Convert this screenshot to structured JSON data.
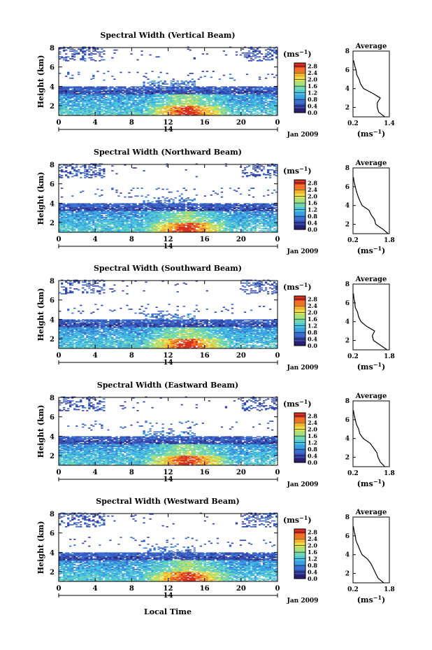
{
  "figure": {
    "xlabel": "Local Time",
    "date_label": "Jan 2009",
    "day_label": "14",
    "unit_label": "(ms",
    "unit_exp": "−1",
    "average_title": "Average",
    "ylabel": "Height (km)"
  },
  "chart_data": [
    {
      "type": "heatmap",
      "title": "Spectral Width (Vertical Beam)",
      "ylabel": "Height (km)",
      "x_ticks": [
        "0",
        "4",
        "8",
        "12",
        "16",
        "20",
        "0"
      ],
      "y_ticks": [
        "2",
        "4",
        "6",
        "8"
      ],
      "xlim": [
        0,
        24
      ],
      "ylim": [
        1,
        8
      ],
      "colorbar": {
        "label": "(ms⁻¹)",
        "ticks": [
          "0.0",
          "0.4",
          "0.8",
          "1.2",
          "1.6",
          "2.0",
          "2.4",
          "2.8"
        ],
        "range": [
          0,
          3.0
        ]
      },
      "average_profile": {
        "title": "Average",
        "xlabel": "(ms⁻¹)",
        "x_ticks": [
          "0.2",
          "1.4"
        ],
        "xlim": [
          0.2,
          1.4
        ],
        "ylim": [
          1,
          8
        ],
        "y_ticks": [
          "2",
          "4",
          "6",
          "8"
        ],
        "height": [
          1.0,
          1.5,
          2.0,
          2.5,
          3.0,
          3.5,
          4.0,
          4.5,
          5.0,
          5.5,
          6.0,
          6.5,
          7.0
        ],
        "width": [
          1.25,
          1.05,
          1.0,
          1.0,
          1.1,
          0.85,
          0.55,
          0.45,
          0.4,
          0.32,
          0.3,
          0.25,
          0.22
        ]
      }
    },
    {
      "type": "heatmap",
      "title": "Spectral Width (Northward Beam)",
      "ylabel": "Height (km)",
      "x_ticks": [
        "0",
        "4",
        "8",
        "12",
        "16",
        "20",
        "0"
      ],
      "y_ticks": [
        "2",
        "4",
        "6",
        "8"
      ],
      "xlim": [
        0,
        24
      ],
      "ylim": [
        1,
        8
      ],
      "colorbar": {
        "label": "(ms⁻¹)",
        "ticks": [
          "0.0",
          "0.4",
          "0.8",
          "1.2",
          "1.6",
          "2.0",
          "2.4",
          "2.8"
        ],
        "range": [
          0,
          3.0
        ]
      },
      "average_profile": {
        "title": "Average",
        "xlabel": "(ms⁻¹)",
        "x_ticks": [
          "0.2",
          "1.8"
        ],
        "xlim": [
          0.2,
          1.8
        ],
        "ylim": [
          1,
          8
        ],
        "y_ticks": [
          "2",
          "4",
          "6",
          "8"
        ],
        "height": [
          1.0,
          1.5,
          2.0,
          2.5,
          3.0,
          3.5,
          4.0,
          4.5,
          5.0,
          5.5,
          6.0,
          6.5,
          7.0
        ],
        "width": [
          1.75,
          1.5,
          1.2,
          1.15,
          1.0,
          0.9,
          0.6,
          0.5,
          0.42,
          0.35,
          0.3,
          0.25,
          0.22
        ]
      }
    },
    {
      "type": "heatmap",
      "title": "Spectral Width (Southward Beam)",
      "ylabel": "Height (km)",
      "x_ticks": [
        "0",
        "4",
        "8",
        "12",
        "16",
        "20",
        "0"
      ],
      "y_ticks": [
        "2",
        "4",
        "6",
        "8"
      ],
      "xlim": [
        0,
        24
      ],
      "ylim": [
        1,
        8
      ],
      "colorbar": {
        "label": "(ms⁻¹)",
        "ticks": [
          "0.0",
          "0.4",
          "0.8",
          "1.2",
          "1.6",
          "2.0",
          "2.4",
          "2.8"
        ],
        "range": [
          0,
          3.0
        ]
      },
      "average_profile": {
        "title": "Average",
        "xlabel": "(ms⁻¹)",
        "x_ticks": [
          "0.2",
          "1.8"
        ],
        "xlim": [
          0.2,
          1.8
        ],
        "ylim": [
          1,
          8
        ],
        "y_ticks": [
          "2",
          "4",
          "6",
          "8"
        ],
        "height": [
          1.0,
          1.5,
          2.0,
          2.5,
          3.0,
          3.5,
          4.0,
          4.5,
          5.0,
          5.5,
          6.0,
          6.5,
          7.0
        ],
        "width": [
          1.7,
          1.4,
          1.1,
          1.05,
          1.15,
          0.8,
          0.55,
          0.45,
          0.4,
          0.3,
          0.28,
          0.24,
          0.22
        ]
      }
    },
    {
      "type": "heatmap",
      "title": "Spectral Width (Eastward Beam)",
      "ylabel": "Height (km)",
      "x_ticks": [
        "0",
        "4",
        "8",
        "12",
        "16",
        "20",
        "0"
      ],
      "y_ticks": [
        "2",
        "4",
        "6",
        "8"
      ],
      "xlim": [
        0,
        24
      ],
      "ylim": [
        1,
        8
      ],
      "colorbar": {
        "label": "(ms⁻¹)",
        "ticks": [
          "0.0",
          "0.4",
          "0.8",
          "1.2",
          "1.6",
          "2.0",
          "2.4",
          "2.8"
        ],
        "range": [
          0,
          3.0
        ]
      },
      "average_profile": {
        "title": "Average",
        "xlabel": "(ms⁻¹)",
        "x_ticks": [
          "0.2",
          "1.8"
        ],
        "xlim": [
          0.2,
          1.8
        ],
        "ylim": [
          1,
          8
        ],
        "y_ticks": [
          "2",
          "4",
          "6",
          "8"
        ],
        "height": [
          1.0,
          1.5,
          2.0,
          2.5,
          3.0,
          3.5,
          4.0,
          4.5,
          5.0,
          5.5,
          6.0,
          6.5,
          7.0
        ],
        "width": [
          1.6,
          1.4,
          1.3,
          1.25,
          1.1,
          0.95,
          0.65,
          0.5,
          0.45,
          0.35,
          0.3,
          0.25,
          0.22
        ]
      }
    },
    {
      "type": "heatmap",
      "title": "Spectral Width (Westward Beam)",
      "ylabel": "Height (km)",
      "x_ticks": [
        "0",
        "4",
        "8",
        "12",
        "16",
        "20",
        "0"
      ],
      "y_ticks": [
        "2",
        "4",
        "6",
        "8"
      ],
      "xlim": [
        0,
        24
      ],
      "ylim": [
        1,
        8
      ],
      "colorbar": {
        "label": "(ms⁻¹)",
        "ticks": [
          "0.0",
          "0.4",
          "0.8",
          "1.2",
          "1.6",
          "2.0",
          "2.4",
          "2.8"
        ],
        "range": [
          0,
          3.0
        ]
      },
      "average_profile": {
        "title": "Average",
        "xlabel": "(ms⁻¹)",
        "x_ticks": [
          "0.2",
          "1.8"
        ],
        "xlim": [
          0.2,
          1.8
        ],
        "ylim": [
          1,
          8
        ],
        "y_ticks": [
          "2",
          "4",
          "6",
          "8"
        ],
        "height": [
          1.0,
          1.5,
          2.0,
          2.5,
          3.0,
          3.5,
          4.0,
          4.5,
          5.0,
          5.5,
          6.0,
          6.5,
          7.0
        ],
        "width": [
          1.55,
          1.3,
          1.2,
          1.1,
          1.0,
          0.85,
          0.6,
          0.5,
          0.42,
          0.33,
          0.3,
          0.25,
          0.22
        ]
      }
    }
  ],
  "colormap": [
    "#2a1f6e",
    "#3546a8",
    "#3a6fd0",
    "#3aa0e0",
    "#4cc6e0",
    "#6fd6b0",
    "#a8e07a",
    "#e8e04a",
    "#f6b030",
    "#f07028",
    "#d83020"
  ]
}
